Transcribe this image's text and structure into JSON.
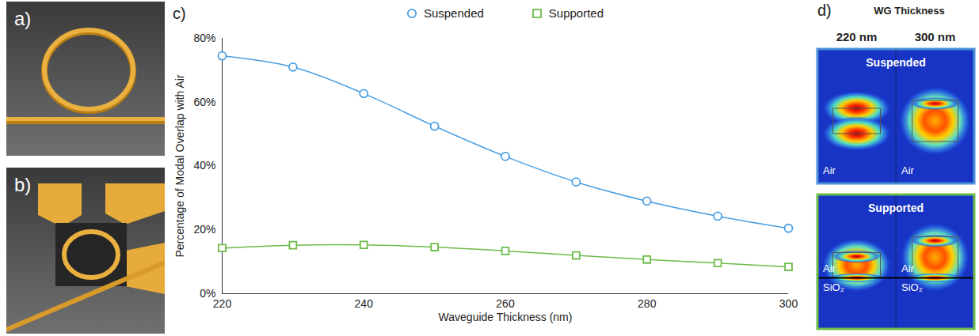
{
  "chart_data": {
    "type": "line",
    "x": [
      220,
      230,
      240,
      250,
      260,
      270,
      280,
      290,
      300
    ],
    "xlim": [
      220,
      300
    ],
    "xticks": [
      220,
      240,
      260,
      280,
      300
    ],
    "ylim": [
      0,
      80
    ],
    "yticks": [
      {
        "value": 0,
        "label": "0%"
      },
      {
        "value": 20,
        "label": "20%"
      },
      {
        "value": 40,
        "label": "40%"
      },
      {
        "value": 60,
        "label": "60%"
      },
      {
        "value": 80,
        "label": "80%"
      }
    ],
    "xlabel": "Waveguide Thickness (nm)",
    "ylabel": "Percentage of Modal Overlap with Air",
    "legend": "top",
    "series": [
      {
        "name": "Suspended",
        "color": "#4a9fe3",
        "marker": "circle",
        "values": [
          74.5,
          71,
          62.7,
          52.5,
          43,
          35,
          29,
          24.3,
          20.5
        ]
      },
      {
        "name": "Supported",
        "color": "#6dbb4a",
        "marker": "square",
        "values": [
          14.3,
          15.2,
          15.3,
          14.6,
          13.4,
          12,
          10.7,
          9.6,
          8.4
        ]
      }
    ]
  },
  "panel_labels": [
    "a)",
    "b)",
    "c)",
    "d)"
  ],
  "field_maps": {
    "title": "WG Thickness",
    "columns": [
      "220 nm",
      "300 nm"
    ],
    "rows": [
      {
        "title": "Suspended",
        "regions": [
          "Air"
        ]
      },
      {
        "title": "Supported",
        "regions": [
          "Air",
          "SiO₂"
        ]
      }
    ]
  }
}
